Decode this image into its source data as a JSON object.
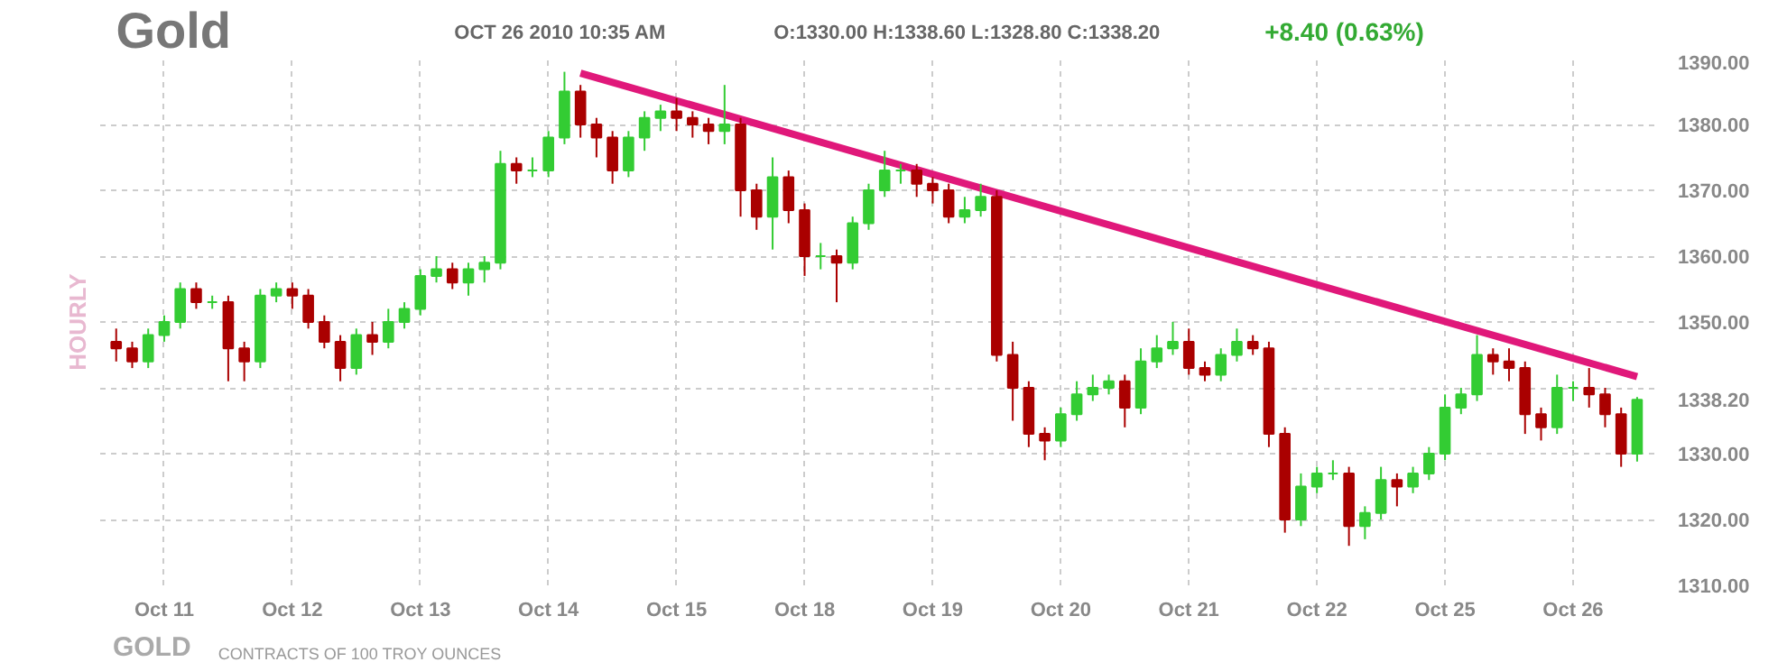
{
  "chart_data": {
    "type": "candlestick",
    "title": "Gold",
    "subtitle": "OCT 26 2010 10:35 AM",
    "ylabel": "HOURLY",
    "annotations": [
      "O:1330.00 H:1338.60 L:1328.80 C:1338.20",
      "+8.40 (0.63%)",
      "GOLD",
      "CONTRACTS OF 100 TROY OUNCES"
    ],
    "categories": [
      null,
      null,
      null,
      "Oct 11",
      null,
      null,
      null,
      null,
      null,
      null,
      null,
      "Oct 12",
      null,
      null,
      null,
      null,
      null,
      null,
      null,
      "Oct 13",
      null,
      null,
      null,
      null,
      null,
      null,
      null,
      "Oct 14",
      null,
      null,
      null,
      null,
      null,
      null,
      null,
      "Oct 15",
      null,
      null,
      null,
      null,
      null,
      null,
      null,
      "Oct 18",
      null,
      null,
      null,
      null,
      null,
      null,
      null,
      "Oct 19",
      null,
      null,
      null,
      null,
      null,
      null,
      null,
      "Oct 20",
      null,
      null,
      null,
      null,
      null,
      null,
      null,
      "Oct 21",
      null,
      null,
      null,
      null,
      null,
      null,
      null,
      "Oct 22",
      null,
      null,
      null,
      null,
      null,
      null,
      null,
      "Oct 25",
      null,
      null,
      null,
      null,
      null,
      null,
      null,
      "Oct 26",
      null,
      null,
      null,
      null
    ],
    "ohlc": [
      [
        1347,
        1349,
        1344,
        1346
      ],
      [
        1346,
        1347,
        1343,
        1344
      ],
      [
        1344,
        1349,
        1343,
        1348
      ],
      [
        1348,
        1351,
        1347,
        1350
      ],
      [
        1350,
        1356,
        1349,
        1355
      ],
      [
        1355,
        1356,
        1352,
        1353
      ],
      [
        1353,
        1354,
        1352,
        1353
      ],
      [
        1353,
        1354,
        1341,
        1346
      ],
      [
        1346,
        1347,
        1341,
        1344
      ],
      [
        1344,
        1355,
        1343,
        1354
      ],
      [
        1354,
        1356,
        1353,
        1355
      ],
      [
        1355,
        1356,
        1352,
        1354
      ],
      [
        1354,
        1355,
        1349,
        1350
      ],
      [
        1350,
        1351,
        1346,
        1347
      ],
      [
        1347,
        1348,
        1341,
        1343
      ],
      [
        1343,
        1349,
        1342,
        1348
      ],
      [
        1348,
        1350,
        1345,
        1347
      ],
      [
        1347,
        1352,
        1346,
        1350
      ],
      [
        1350,
        1353,
        1349,
        1352
      ],
      [
        1352,
        1358,
        1351,
        1357
      ],
      [
        1357,
        1360,
        1356,
        1358
      ],
      [
        1358,
        1359,
        1355,
        1356
      ],
      [
        1356,
        1359,
        1354,
        1358
      ],
      [
        1358,
        1360,
        1356,
        1359
      ],
      [
        1359,
        1376,
        1358,
        1374
      ],
      [
        1374,
        1375,
        1371,
        1373
      ],
      [
        1373,
        1375,
        1372,
        1373
      ],
      [
        1373,
        1379,
        1372,
        1378
      ],
      [
        1378,
        1388,
        1377,
        1385
      ],
      [
        1385,
        1386,
        1378,
        1380
      ],
      [
        1380,
        1381,
        1375,
        1378
      ],
      [
        1378,
        1379,
        1371,
        1373
      ],
      [
        1373,
        1379,
        1372,
        1378
      ],
      [
        1378,
        1382,
        1376,
        1381
      ],
      [
        1381,
        1383,
        1379,
        1382
      ],
      [
        1382,
        1384,
        1379,
        1381
      ],
      [
        1381,
        1382,
        1378,
        1380
      ],
      [
        1380,
        1381,
        1377,
        1379
      ],
      [
        1379,
        1386,
        1377,
        1380
      ],
      [
        1380,
        1381,
        1366,
        1370
      ],
      [
        1370,
        1371,
        1364,
        1366
      ],
      [
        1366,
        1375,
        1361,
        1372
      ],
      [
        1372,
        1373,
        1365,
        1367
      ],
      [
        1367,
        1368,
        1357,
        1360
      ],
      [
        1360,
        1362,
        1358,
        1360
      ],
      [
        1360,
        1361,
        1353,
        1359
      ],
      [
        1359,
        1366,
        1358,
        1365
      ],
      [
        1365,
        1371,
        1364,
        1370
      ],
      [
        1370,
        1376,
        1369,
        1373
      ],
      [
        1373,
        1374,
        1371,
        1373
      ],
      [
        1373,
        1374,
        1369,
        1371
      ],
      [
        1371,
        1372,
        1368,
        1370
      ],
      [
        1370,
        1371,
        1365,
        1366
      ],
      [
        1366,
        1369,
        1365,
        1367
      ],
      [
        1367,
        1371,
        1366,
        1369
      ],
      [
        1369,
        1370,
        1344,
        1345
      ],
      [
        1345,
        1347,
        1335,
        1340
      ],
      [
        1340,
        1341,
        1331,
        1333
      ],
      [
        1333,
        1334,
        1329,
        1332
      ],
      [
        1332,
        1337,
        1331,
        1336
      ],
      [
        1336,
        1341,
        1335,
        1339
      ],
      [
        1339,
        1342,
        1338,
        1340
      ],
      [
        1340,
        1342,
        1339,
        1341
      ],
      [
        1341,
        1342,
        1334,
        1337
      ],
      [
        1337,
        1346,
        1336,
        1344
      ],
      [
        1344,
        1348,
        1343,
        1346
      ],
      [
        1346,
        1350,
        1345,
        1347
      ],
      [
        1347,
        1349,
        1342,
        1343
      ],
      [
        1343,
        1344,
        1341,
        1342
      ],
      [
        1342,
        1346,
        1341,
        1345
      ],
      [
        1345,
        1349,
        1344,
        1347
      ],
      [
        1347,
        1348,
        1345,
        1346
      ],
      [
        1346,
        1347,
        1331,
        1333
      ],
      [
        1333,
        1334,
        1318,
        1320
      ],
      [
        1320,
        1327,
        1319,
        1325
      ],
      [
        1325,
        1328,
        1324,
        1327
      ],
      [
        1327,
        1329,
        1326,
        1327
      ],
      [
        1327,
        1328,
        1316,
        1319
      ],
      [
        1319,
        1322,
        1317,
        1321
      ],
      [
        1321,
        1328,
        1320,
        1326
      ],
      [
        1326,
        1327,
        1322,
        1325
      ],
      [
        1325,
        1328,
        1324,
        1327
      ],
      [
        1327,
        1331,
        1326,
        1330
      ],
      [
        1330,
        1339,
        1329,
        1337
      ],
      [
        1337,
        1340,
        1336,
        1339
      ],
      [
        1339,
        1348,
        1338,
        1345
      ],
      [
        1345,
        1346,
        1342,
        1344
      ],
      [
        1344,
        1346,
        1341,
        1343
      ],
      [
        1343,
        1344,
        1333,
        1336
      ],
      [
        1336,
        1337,
        1332,
        1334
      ],
      [
        1334,
        1342,
        1333,
        1340
      ],
      [
        1340,
        1341,
        1338,
        1340
      ],
      [
        1340,
        1343,
        1337,
        1339
      ],
      [
        1339,
        1340,
        1334,
        1336
      ],
      [
        1336,
        1337,
        1328,
        1330
      ],
      [
        1330,
        1338.6,
        1328.8,
        1338.2
      ]
    ],
    "colors": [
      "#aa0000",
      "#aa0000",
      "#33cc33",
      "#33cc33",
      "#33cc33",
      "#aa0000",
      "#33cc33",
      "#aa0000",
      "#aa0000",
      "#33cc33",
      "#33cc33",
      "#aa0000",
      "#aa0000",
      "#aa0000",
      "#aa0000",
      "#33cc33",
      "#aa0000",
      "#33cc33",
      "#33cc33",
      "#33cc33",
      "#33cc33",
      "#aa0000",
      "#33cc33",
      "#33cc33",
      "#33cc33",
      "#aa0000",
      "#33cc33",
      "#33cc33",
      "#33cc33",
      "#aa0000",
      "#aa0000",
      "#aa0000",
      "#33cc33",
      "#33cc33",
      "#33cc33",
      "#aa0000",
      "#aa0000",
      "#aa0000",
      "#33cc33",
      "#aa0000",
      "#aa0000",
      "#33cc33",
      "#aa0000",
      "#aa0000",
      "#33cc33",
      "#aa0000",
      "#33cc33",
      "#33cc33",
      "#33cc33",
      "#33cc33",
      "#aa0000",
      "#aa0000",
      "#aa0000",
      "#33cc33",
      "#33cc33",
      "#aa0000",
      "#aa0000",
      "#aa0000",
      "#aa0000",
      "#33cc33",
      "#33cc33",
      "#33cc33",
      "#33cc33",
      "#aa0000",
      "#33cc33",
      "#33cc33",
      "#33cc33",
      "#aa0000",
      "#aa0000",
      "#33cc33",
      "#33cc33",
      "#aa0000",
      "#aa0000",
      "#aa0000",
      "#33cc33",
      "#33cc33",
      "#33cc33",
      "#aa0000",
      "#33cc33",
      "#33cc33",
      "#aa0000",
      "#33cc33",
      "#33cc33",
      "#33cc33",
      "#33cc33",
      "#33cc33",
      "#aa0000",
      "#aa0000",
      "#aa0000",
      "#aa0000",
      "#33cc33",
      "#33cc33",
      "#aa0000",
      "#aa0000",
      "#aa0000",
      "#33cc33"
    ],
    "series": [
      {
        "type": "line",
        "color": "#e0187a",
        "values": [
          null,
          null,
          null,
          null,
          null,
          null,
          null,
          null,
          null,
          null,
          null,
          null,
          null,
          null,
          null,
          null,
          null,
          null,
          null,
          null,
          null,
          null,
          null,
          null,
          null,
          null,
          null,
          null,
          null,
          1387.8,
          null,
          null,
          null,
          null,
          null,
          null,
          null,
          null,
          null,
          null,
          null,
          null,
          null,
          null,
          null,
          null,
          null,
          null,
          null,
          null,
          null,
          null,
          null,
          null,
          null,
          null,
          null,
          null,
          null,
          null,
          null,
          null,
          null,
          null,
          null,
          null,
          null,
          null,
          null,
          null,
          null,
          null,
          null,
          null,
          null,
          null,
          null,
          null,
          null,
          null,
          null,
          null,
          null,
          null,
          null,
          null,
          null,
          null,
          null,
          null,
          null,
          null,
          null,
          null,
          null,
          1341.7
        ]
      }
    ],
    "ylim": [
      1310,
      1390
    ],
    "yticks": [
      {
        "value": 1310,
        "label": "1310.00"
      },
      {
        "value": 1320,
        "label": "1320.00"
      },
      {
        "value": 1330,
        "label": "1330.00"
      },
      {
        "value": 1338.2,
        "label": "1338.20"
      },
      {
        "value": 1340,
        "label": null
      },
      {
        "value": 1350,
        "label": "1350.00"
      },
      {
        "value": 1360,
        "label": "1360.00"
      },
      {
        "value": 1370,
        "label": "1370.00"
      },
      {
        "value": 1380,
        "label": "1380.00"
      },
      {
        "value": 1390,
        "label": "1390.00"
      }
    ],
    "grid": true
  }
}
